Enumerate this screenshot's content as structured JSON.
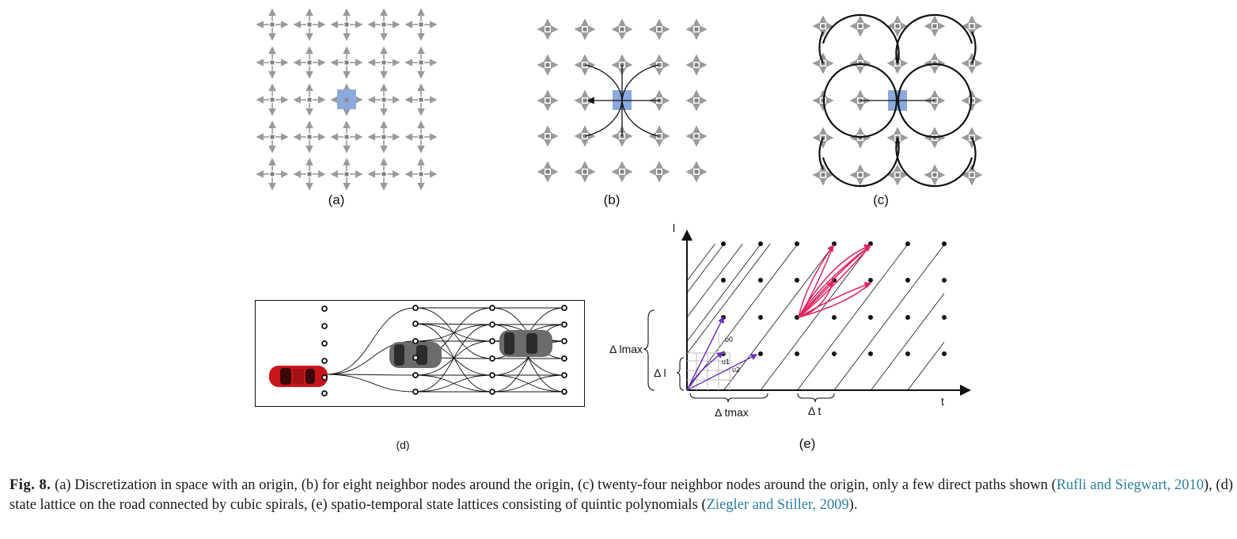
{
  "figure": {
    "panels": {
      "a": {
        "label": "(a)"
      },
      "b": {
        "label": "(b)"
      },
      "c": {
        "label": "(c)"
      },
      "d": {
        "label": "(d)"
      },
      "e": {
        "label": "(e)",
        "y_axis": "l",
        "x_axis": "t",
        "delta_l_max": "Δ lmax",
        "delta_l": "Δ l",
        "delta_t_max": "Δ tmax",
        "delta_t": "Δ t",
        "v0": "υ0",
        "v1": "υ1",
        "v2": "υ2"
      }
    },
    "colors": {
      "lattice_gray": "#9a9a9a",
      "origin_blue": "#8ca9dd",
      "path_black": "#111111",
      "car_red": "#c8161b",
      "car_gray": "#6b6b6b",
      "polynomial_pink": "#e0245e",
      "velocity_purple": "#6a2fbf"
    }
  },
  "caption": {
    "label": "Fig. 8.",
    "part1": "(a) Discretization in space with an origin, (b) for eight neighbor nodes around the origin, (c) twenty-four neighbor nodes around the origin, only a few direct paths shown (",
    "cite1": "Rufli and Siegwart, 2010",
    "part2": "), (d) state lattice on the road connected by cubic spirals, (e) spatio-temporal state lattices consisting of quintic polynomials (",
    "cite2": "Ziegler and Stiller, 2009",
    "part3": ")."
  }
}
